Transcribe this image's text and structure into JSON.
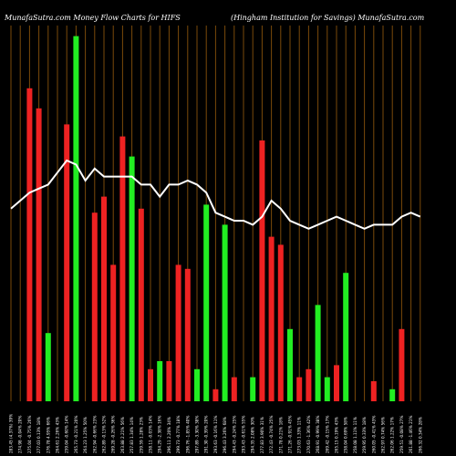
{
  "header": {
    "left": "MunafaSutra.com   Money Flow  Charts for HIFS",
    "right": "(Hingham Institution  for Savings) MunafaSutra.com"
  },
  "colors": {
    "background": "#000000",
    "green": "#22ee22",
    "red": "#ee2222",
    "grid": "#7a4a0a",
    "line": "#ffffff",
    "text": "#ffffff"
  },
  "chart_data": {
    "type": "bar",
    "title": "",
    "xlabel": "",
    "ylabel": "",
    "grid": true,
    "bar_ylim": [
      0,
      100
    ],
    "line_ylim": [
      0,
      100
    ],
    "categories": [
      "285.19 (1.37%) 14%",
      "274.88 -0.04% 20%",
      "275.00 -0.75% 18%",
      "277.09 0.13% 10%",
      "276.72 1.95% 5%",
      "271.41 1.76% 44%",
      "266.72 2.0% 7%",
      "261.91 -2.28% 6%",
      "267.81 1.30% 12%",
      "264.37 0.47% 11%",
      "263.13 0.91% 9%",
      "260.79 -0.30% 11%",
      "261.58 -1.44% 15%",
      "262.04 -0.06% 6%",
      "262.19 0.44% 33%",
      "261.05 1.30% 8%",
      "257.71 -0.32% 13%",
      "258.42 0.78% 6%",
      "258.25 -0.48% 9%",
      "259.48 0.06% 5%",
      "259.59 1.45% 5%",
      "255.89 -0.52% 4%",
      "257.23 0.20% 9%",
      "256.73 -0.85% 3%",
      "258.92 0.39% 3%",
      "257.91 -0.96% 5%",
      "260.42 1.81% 5%",
      "255.79 -0.75% 6%",
      "257.74 -0.27% 4%",
      "258.43 2.07% 3%",
      "252.48 -0.37% 3%",
      "253.41 -0.93% 5%",
      "255.81 -0.41% 3%",
      "256.87 0.65% 6%",
      "255.21 -0.46% 5%",
      "256.38 -0.75% 4%",
      "258.32 -0.21% 4%",
      "260.26 -0.22% 4%",
      "260.84 -0.13% 4%",
      "261.20 0.65% 5%",
      "259.52 -1.50% 4%",
      "263.46 -0.76% 3%",
      "265.47 1.09% 8%",
      "262.58 0.13% 4%",
      "262.24 0.36% 4%"
    ],
    "series": [
      {
        "type": "bar",
        "values": [
          0,
          0,
          78,
          73,
          17,
          0,
          69,
          91,
          0,
          47,
          51,
          34,
          66,
          61,
          48,
          8,
          10,
          10,
          34,
          33,
          8,
          49,
          3,
          44,
          6,
          0,
          6,
          65,
          41,
          39,
          18,
          6,
          8,
          24,
          6,
          9,
          32,
          0,
          0,
          5,
          0,
          3,
          18,
          0,
          0
        ],
        "colors": [
          "r",
          "g",
          "r",
          "r",
          "g",
          "g",
          "r",
          "g",
          "g",
          "r",
          "r",
          "r",
          "r",
          "g",
          "r",
          "r",
          "g",
          "r",
          "r",
          "r",
          "g",
          "g",
          "r",
          "g",
          "r",
          "g",
          "g",
          "r",
          "r",
          "r",
          "g",
          "r",
          "r",
          "g",
          "g",
          "r",
          "g",
          "r",
          "g",
          "r",
          "r",
          "g",
          "r",
          "r",
          "g"
        ]
      },
      {
        "type": "line",
        "values": [
          48,
          50,
          52,
          53,
          54,
          57,
          60,
          59,
          55,
          58,
          56,
          56,
          56,
          56,
          54,
          54,
          51,
          54,
          54,
          55,
          54,
          52,
          47,
          46,
          45,
          45,
          44,
          46,
          50,
          48,
          45,
          44,
          43,
          44,
          45,
          46,
          45,
          44,
          43,
          44,
          44,
          44,
          46,
          47,
          46
        ]
      }
    ],
    "tick_labels": [
      "283.45 (4.37%) 39%",
      "274.98 -0.04% 20%",
      "275.04 -0.75% 26%",
      "277.03 0.13% 18%",
      "276.78 4.95% 66%",
      "264.61 2.26% 43%",
      "259.04 -0.60% 14%",
      "265.73 -0.21% 20%",
      "264.23 1.25% 50%",
      "262.94 -0.66% 23%",
      "262.89 -0.13% 52%",
      "269.28 -0.26% 36%",
      "263.88 2.21% 56%",
      "257.83 1.34% 14%",
      "259.59 1.28% 23%",
      "258.11 -0.03% 14%",
      "294.29 -2.38% 16%",
      "296.11 2.20% 34%",
      "299.73 -0.77% 18%",
      "296.76 -1.85% 40%",
      "297.89 -3.30% 38%",
      "291.30 -0.39% 20%",
      "293.63 -0.16% 11%",
      "296.43 3.26% 68%",
      "294.43 -0.24% 25%",
      "293.43 -0.61% 55%",
      "294.35 2.08% 30%",
      "277.83 3.90% 31%",
      "272.43 -0.74% 25%",
      "271.78 0.21% 18%",
      "271.26 -0.91% 45%",
      "273.03 1.33% 11%",
      "270.63 -1.36% 42%",
      "268.91 -0.99% 38%",
      "269.42 -0.15% 17%",
      "265.15 0.19% 43%",
      "258.04 0.69% 58%",
      "258.08 1.11% 11%",
      "259.95 0.33% 18%",
      "260.05 -0.41% 43%",
      "262.97 0.74% 56%",
      "262.06 1.22% 17%",
      "259.51 -0.08% 27%",
      "261.88 -1.46% 21%",
      "266.32 0.34% 28%"
    ]
  }
}
